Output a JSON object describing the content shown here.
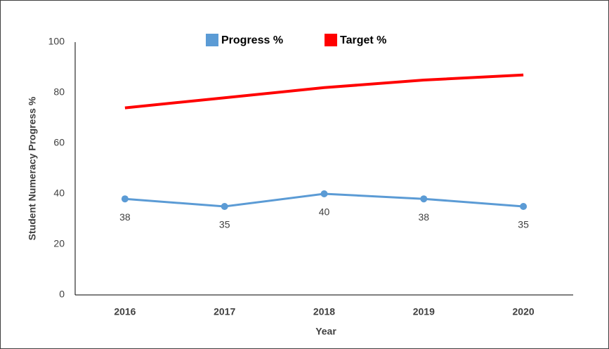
{
  "chart_data": {
    "type": "line",
    "categories": [
      "2016",
      "2017",
      "2018",
      "2019",
      "2020"
    ],
    "series": [
      {
        "name": "Progress %",
        "color": "#5b9bd5",
        "values": [
          38,
          35,
          40,
          38,
          35
        ]
      },
      {
        "name": "Target %",
        "color": "#ff0000",
        "values": [
          74,
          78,
          82,
          85,
          87
        ]
      }
    ],
    "ylim": [
      0,
      100
    ],
    "yticks": [
      0,
      20,
      40,
      60,
      80,
      100
    ],
    "xlabel": "Year",
    "ylabel": "Student Numeracy Progress %",
    "legend": "top",
    "grid": false
  }
}
